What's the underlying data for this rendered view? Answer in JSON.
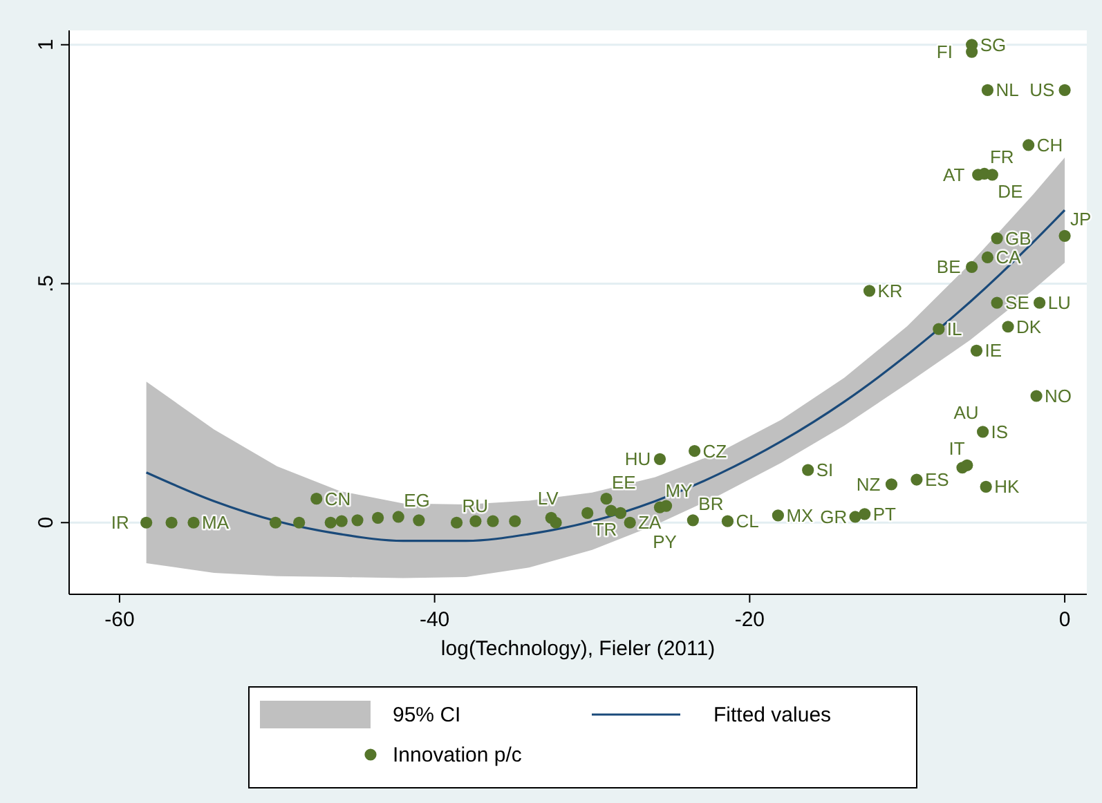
{
  "chart_data": {
    "type": "scatter",
    "xlabel": "log(Technology), Fieler (2011)",
    "xlim": [
      -63.2,
      1.4
    ],
    "ylim": [
      -0.15,
      1.03
    ],
    "xticks": [
      -60,
      -40,
      -20,
      0
    ],
    "yticks": [
      0,
      {
        "value": 0.5,
        "label": ".5"
      },
      1
    ],
    "grid": "y",
    "legend": "bottom",
    "series": [
      {
        "name": "Fitted values",
        "type": "line",
        "color": "#1a4a7a",
        "x": [
          -58.3,
          -54,
          -50,
          -46,
          -42,
          -38,
          -34,
          -30,
          -26,
          -22,
          -18,
          -14,
          -10,
          -6,
          -2,
          0
        ],
        "values": [
          0.105,
          0.045,
          0.003,
          -0.024,
          -0.038,
          -0.038,
          -0.024,
          0.003,
          0.045,
          0.101,
          0.17,
          0.253,
          0.351,
          0.462,
          0.587,
          0.654
        ],
        "lower": [
          -0.085,
          -0.105,
          -0.112,
          -0.114,
          -0.116,
          -0.114,
          -0.094,
          -0.057,
          -0.005,
          0.056,
          0.125,
          0.203,
          0.291,
          0.382,
          0.487,
          0.544
        ],
        "upper": [
          0.295,
          0.195,
          0.118,
          0.066,
          0.04,
          0.038,
          0.046,
          0.063,
          0.095,
          0.146,
          0.215,
          0.303,
          0.411,
          0.542,
          0.687,
          0.764
        ]
      },
      {
        "name": "Innovation p/c",
        "color": "#55752a",
        "marker": "circle",
        "x": [
          -58.3,
          -56.7,
          -55.3,
          -50.1,
          -48.6,
          -47.5,
          -46.6,
          -45.9,
          -44.9,
          -43.6,
          -42.3,
          -41,
          -38.6,
          -37.4,
          -36.3,
          -34.9,
          -32.6,
          -32.3,
          -30.3,
          -29.1,
          -28.8,
          -28.2,
          -27.6,
          -25.7,
          -25.3,
          -23.6,
          -21.4,
          -18.2,
          -13.3,
          -12.7,
          -25.7,
          -23.5,
          -16.3,
          -11,
          -9.4,
          -6.5,
          -6.2,
          -5,
          -5.2,
          -1.8,
          -5.6,
          -8,
          -3.6,
          -4.3,
          -1.6,
          -12.4,
          -5.9,
          -4.9,
          -4.3,
          0,
          -5.5,
          -5.1,
          -4.6,
          -2.3,
          -4.9,
          0,
          -5.9,
          -5.9
        ],
        "values": [
          0,
          0,
          0,
          0,
          0,
          0.05,
          0,
          0.003,
          0.005,
          0.01,
          0.012,
          0.005,
          0,
          0.003,
          0.003,
          0.003,
          0.01,
          0,
          0.02,
          0.05,
          0.025,
          0.02,
          0,
          0.032,
          0.035,
          0.005,
          0.003,
          0.015,
          0.012,
          0.018,
          0.133,
          0.15,
          0.11,
          0.08,
          0.09,
          0.115,
          0.12,
          0.075,
          0.19,
          0.265,
          0.36,
          0.405,
          0.41,
          0.46,
          0.46,
          0.485,
          0.535,
          0.555,
          0.595,
          0.6,
          0.728,
          0.73,
          0.728,
          0.79,
          0.905,
          0.905,
          1,
          0.985
        ]
      }
    ],
    "annotations": [
      "95% CI",
      {
        "text": "IR",
        "x": -58.3,
        "y": 0
      },
      {
        "text": "MA",
        "x": -55.3,
        "y": 0
      },
      {
        "text": "CN",
        "x": -47.5,
        "y": 0.05
      },
      {
        "text": "EG",
        "x": -42.3,
        "y": 0.012
      },
      {
        "text": "RU",
        "x": -38.6,
        "y": 0
      },
      {
        "text": "LV",
        "x": -32.6,
        "y": 0.01
      },
      {
        "text": "TR",
        "x": -30.3,
        "y": 0.02
      },
      {
        "text": "EE",
        "x": -29.1,
        "y": 0.05
      },
      {
        "text": "ZA",
        "x": -27.6,
        "y": 0
      },
      {
        "text": "MY",
        "x": -25.7,
        "y": 0.032
      },
      {
        "text": "PY",
        "x": -25.3,
        "y": 0.035
      },
      {
        "text": "BR",
        "x": -23.6,
        "y": 0.005
      },
      {
        "text": "CL",
        "x": -21.4,
        "y": 0.003
      },
      {
        "text": "MX",
        "x": -18.2,
        "y": 0.015
      },
      {
        "text": "GR",
        "x": -13.3,
        "y": 0.012
      },
      {
        "text": "PT",
        "x": -12.7,
        "y": 0.018
      },
      {
        "text": "HU",
        "x": -25.7,
        "y": 0.133
      },
      {
        "text": "CZ",
        "x": -23.5,
        "y": 0.15
      },
      {
        "text": "SI",
        "x": -16.3,
        "y": 0.11
      },
      {
        "text": "NZ",
        "x": -11,
        "y": 0.08
      },
      {
        "text": "ES",
        "x": -9.4,
        "y": 0.09
      },
      {
        "text": "IT",
        "x": -6.5,
        "y": 0.115
      },
      {
        "text": "AU",
        "x": -6.2,
        "y": 0.12
      },
      {
        "text": "HK",
        "x": -5,
        "y": 0.075
      },
      {
        "text": "IS",
        "x": -5.2,
        "y": 0.19
      },
      {
        "text": "NO",
        "x": -1.8,
        "y": 0.265
      },
      {
        "text": "IE",
        "x": -5.6,
        "y": 0.36
      },
      {
        "text": "IL",
        "x": -8,
        "y": 0.405
      },
      {
        "text": "DK",
        "x": -3.6,
        "y": 0.41
      },
      {
        "text": "SE",
        "x": -4.3,
        "y": 0.46
      },
      {
        "text": "LU",
        "x": -1.6,
        "y": 0.46
      },
      {
        "text": "KR",
        "x": -12.4,
        "y": 0.485
      },
      {
        "text": "BE",
        "x": -5.9,
        "y": 0.535
      },
      {
        "text": "CA",
        "x": -4.9,
        "y": 0.555
      },
      {
        "text": "GB",
        "x": -4.3,
        "y": 0.595
      },
      {
        "text": "JP",
        "x": 0,
        "y": 0.6
      },
      {
        "text": "AT",
        "x": -5.5,
        "y": 0.728
      },
      {
        "text": "FR",
        "x": -5.1,
        "y": 0.73
      },
      {
        "text": "DE",
        "x": -4.6,
        "y": 0.728
      },
      {
        "text": "CH",
        "x": -2.3,
        "y": 0.79
      },
      {
        "text": "NL",
        "x": -4.9,
        "y": 0.905
      },
      {
        "text": "US",
        "x": 0,
        "y": 0.905
      },
      {
        "text": "SG",
        "x": -5.9,
        "y": 1
      },
      {
        "text": "FI",
        "x": -5.9,
        "y": 0.985
      }
    ]
  }
}
